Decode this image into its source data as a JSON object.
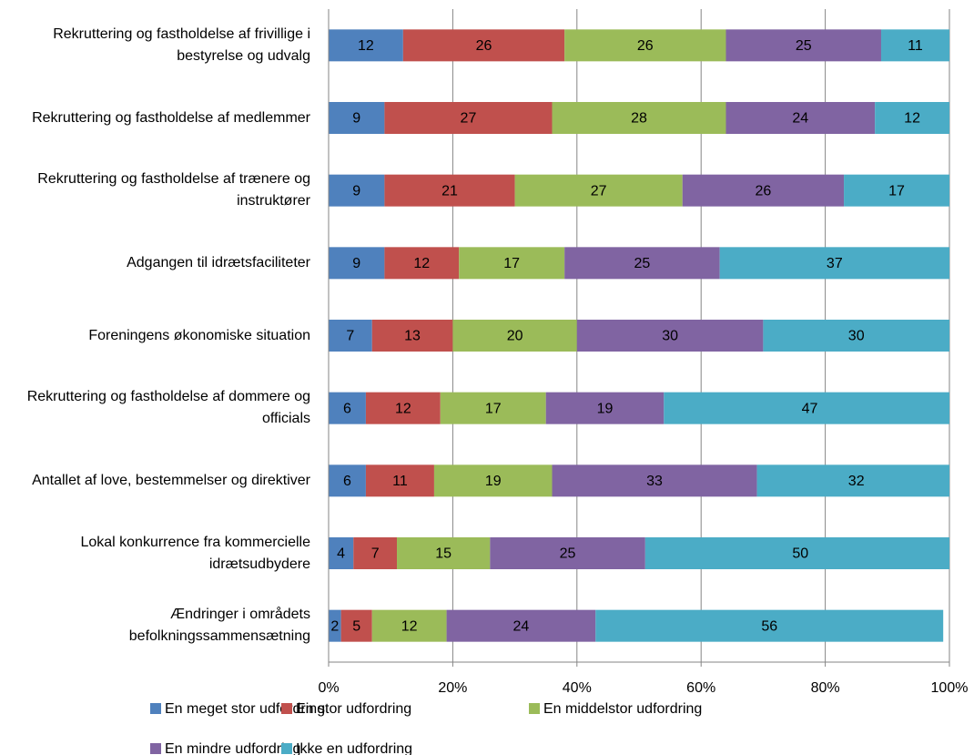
{
  "chart_data": {
    "type": "stacked-bar-horizontal",
    "categories": [
      "Rekruttering og fastholdelse af frivillige i bestyrelse og udvalg",
      "Rekruttering og fastholdelse af medlemmer",
      "Rekruttering og fastholdelse af trænere og instruktører",
      "Adgangen til idrætsfaciliteter",
      "Foreningens økonomiske situation",
      "Rekruttering og fastholdelse af dommere og officials",
      "Antallet af love, bestemmelser og direktiver",
      "Lokal konkurrence fra kommercielle idrætsudbydere",
      "Ændringer i områdets befolkningssammensætning"
    ],
    "series": [
      {
        "name": "En meget stor udfordring",
        "color": "#4f81bd",
        "values": [
          12,
          9,
          9,
          9,
          7,
          6,
          6,
          4,
          2
        ]
      },
      {
        "name": "En stor udfordring",
        "color": "#c0504d",
        "values": [
          26,
          27,
          21,
          12,
          13,
          12,
          11,
          7,
          5
        ]
      },
      {
        "name": "En middelstor udfordring",
        "color": "#9bbb59",
        "values": [
          26,
          28,
          27,
          17,
          20,
          17,
          19,
          15,
          12
        ]
      },
      {
        "name": "En mindre udfordring",
        "color": "#8064a2",
        "values": [
          25,
          24,
          26,
          25,
          30,
          19,
          33,
          25,
          24
        ]
      },
      {
        "name": "Ikke en udfordring",
        "color": "#4bacc6",
        "values": [
          11,
          12,
          17,
          37,
          30,
          47,
          32,
          50,
          56
        ]
      }
    ],
    "xlim": [
      0,
      100
    ],
    "xticks": [
      {
        "value": 0,
        "label": "0%"
      },
      {
        "value": 20,
        "label": "20%"
      },
      {
        "value": 40,
        "label": "40%"
      },
      {
        "value": 60,
        "label": "60%"
      },
      {
        "value": 80,
        "label": "80%"
      },
      {
        "value": 100,
        "label": "100%"
      }
    ],
    "grid": true
  }
}
